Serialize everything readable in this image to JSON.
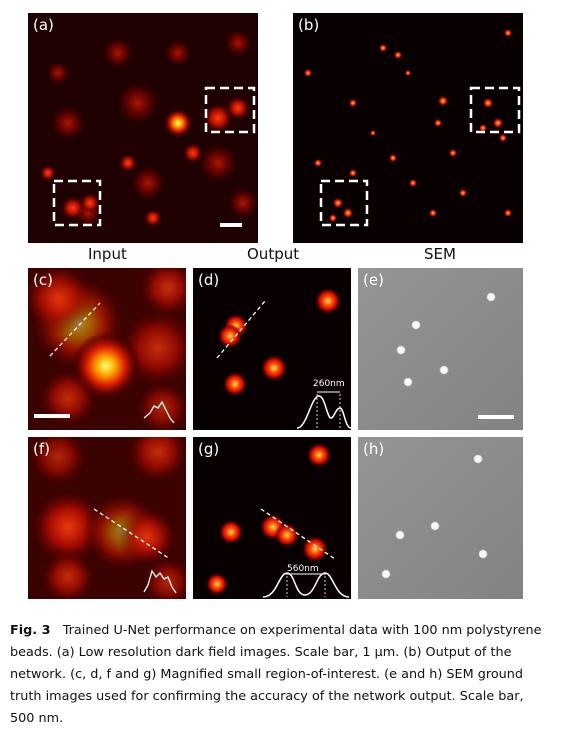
{
  "panels": {
    "a": "(a)",
    "b": "(b)",
    "c": "(c)",
    "d": "(d)",
    "e": "(e)",
    "f": "(f)",
    "g": "(g)",
    "h": "(h)"
  },
  "row_labels": {
    "input": "Input",
    "output": "Output",
    "sem": "SEM"
  },
  "measurements": {
    "d": "260nm",
    "g": "560nm"
  },
  "caption": {
    "fig_label": "Fig. 3",
    "text": "Trained U-Net performance on experimental data with 100 nm polystyrene beads. (a) Low resolution dark field images. Scale bar, 1 μm. (b) Output of the network. (c, d, f and g) Magnified small region-of-interest. (e and h) SEM ground truth images used for confirming the accuracy of the network output. Scale bar, 500 nm."
  },
  "colors": {
    "hot_bg": "#0a0000",
    "input_bg": "#1a0000",
    "sem_bg": "#8c8c8c"
  }
}
